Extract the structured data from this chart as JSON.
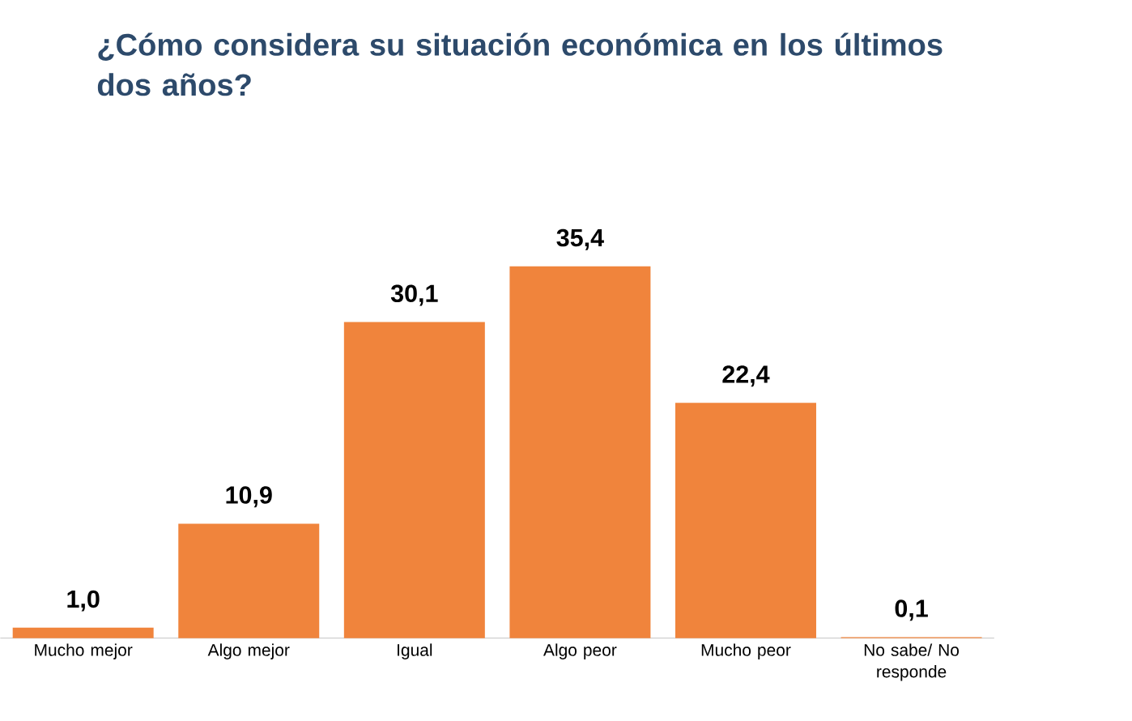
{
  "chart_data": {
    "type": "bar",
    "title": "¿Cómo considera su situación económica en los últimos dos años?",
    "categories": [
      "Mucho mejor",
      "Algo mejor",
      "Igual",
      "Algo peor",
      "Mucho peor",
      "No sabe/ No responde"
    ],
    "values": [
      1.0,
      10.9,
      30.1,
      35.4,
      22.4,
      0.1
    ],
    "value_labels": [
      "1,0",
      "10,9",
      "30,1",
      "35,4",
      "22,4",
      "0,1"
    ],
    "color": "#f0843c"
  }
}
